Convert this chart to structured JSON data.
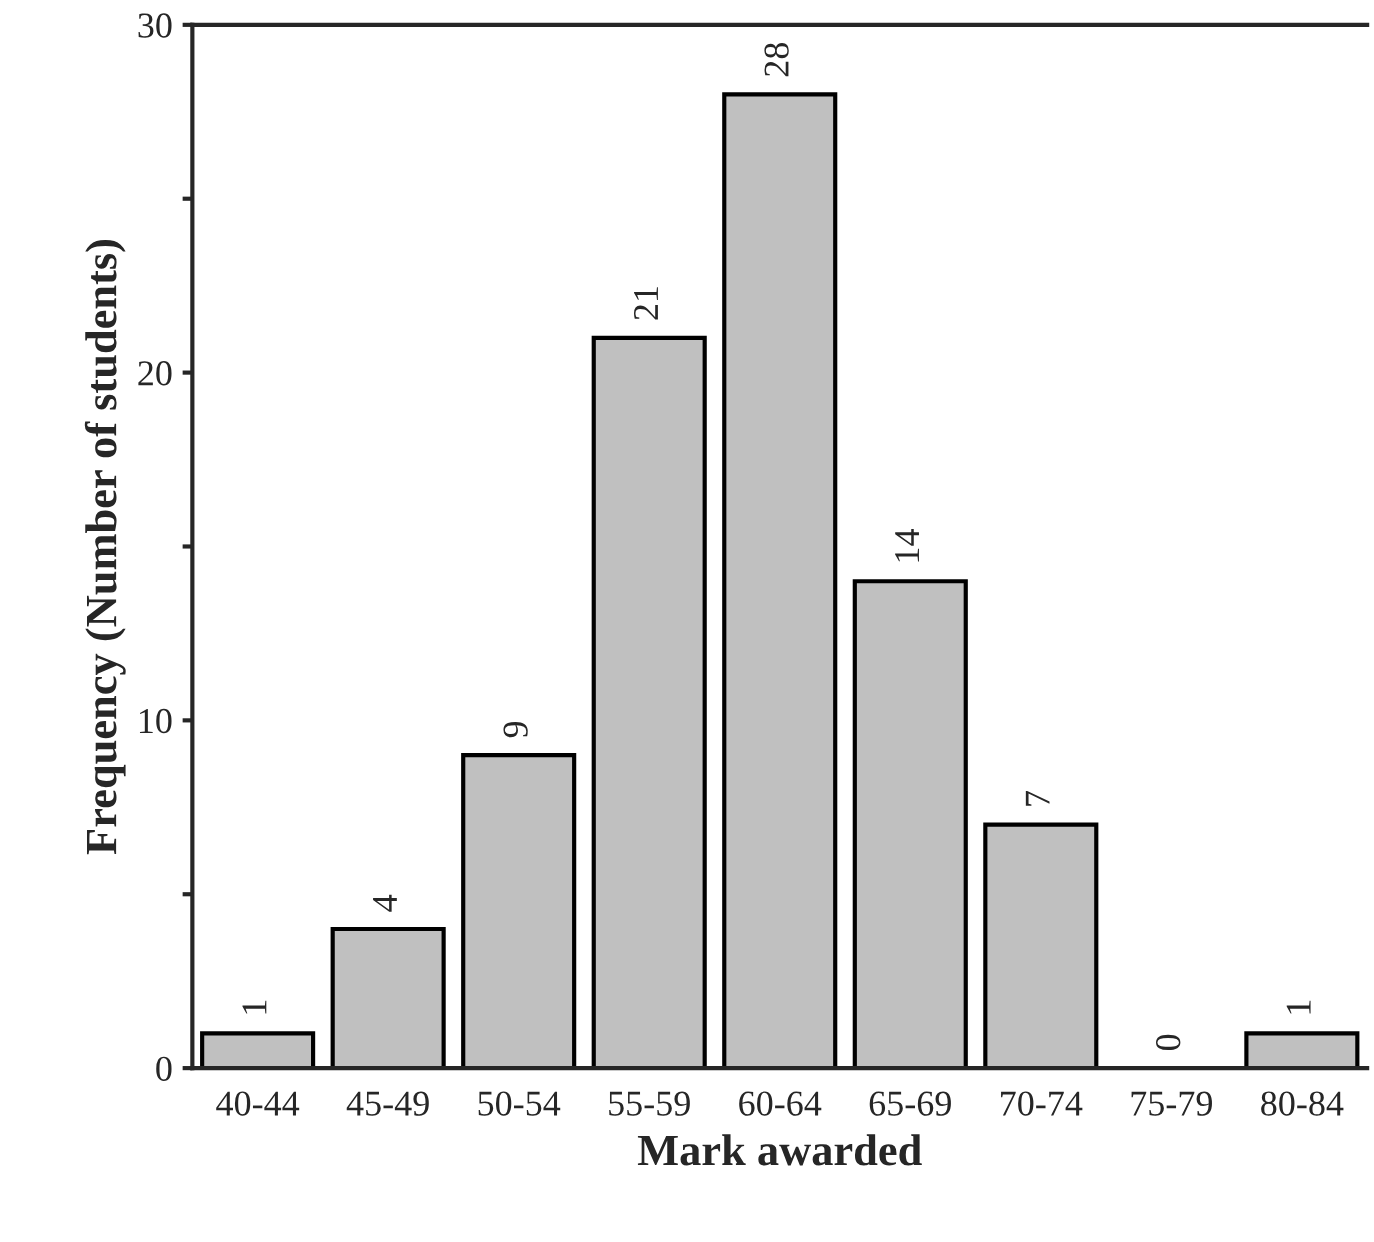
{
  "chart_data": {
    "type": "bar",
    "xlabel": "Mark awarded",
    "ylabel": "Frequency (Number of students)",
    "categories": [
      "40-44",
      "45-49",
      "50-54",
      "55-59",
      "60-64",
      "65-69",
      "70-74",
      "75-79",
      "80-84"
    ],
    "values": [
      1,
      4,
      9,
      21,
      28,
      14,
      7,
      0,
      1
    ],
    "color": "#c0c0c0",
    "ylim": [
      0,
      30
    ],
    "yticks": [
      0,
      {
        "value": 5,
        "label": null
      },
      10,
      {
        "value": 15,
        "label": null
      },
      20,
      {
        "value": 25,
        "label": null
      },
      30
    ],
    "data_labels": true,
    "grid": false,
    "legend": false
  }
}
